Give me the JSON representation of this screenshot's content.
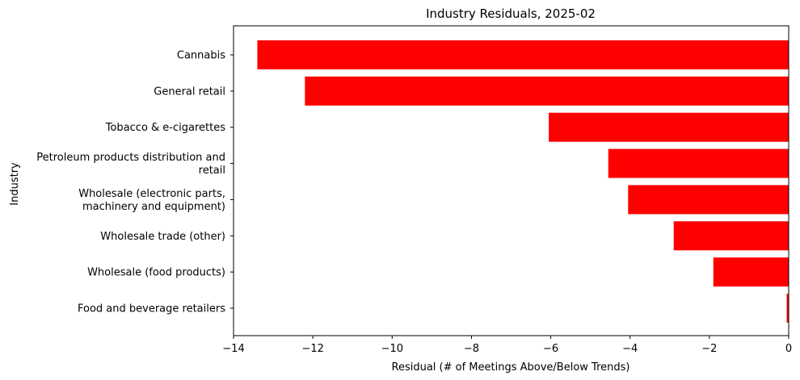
{
  "chart_data": {
    "type": "bar",
    "orientation": "horizontal",
    "title": "Industry Residuals, 2025-02",
    "xlabel": "Residual (# of Meetings Above/Below Trends)",
    "ylabel": "Industry",
    "xlim": [
      -14,
      0
    ],
    "xticks": [
      -14,
      -12,
      -10,
      -8,
      -6,
      -4,
      -2,
      0
    ],
    "xtick_labels": [
      "−14",
      "−12",
      "−10",
      "−8",
      "−6",
      "−4",
      "−2",
      "0"
    ],
    "grid": false,
    "legend": "none",
    "bar_color": "#ff0000",
    "categories": [
      [
        "Cannabis"
      ],
      [
        "General retail"
      ],
      [
        "Tobacco & e-cigarettes"
      ],
      [
        "Petroleum products distribution and",
        "retail"
      ],
      [
        "Wholesale (electronic parts,",
        "machinery and equipment)"
      ],
      [
        "Wholesale trade (other)"
      ],
      [
        "Wholesale (food products)"
      ],
      [
        "Food and beverage retailers"
      ]
    ],
    "values": [
      -13.4,
      -12.2,
      -6.05,
      -4.55,
      -4.05,
      -2.9,
      -1.9,
      -0.05
    ]
  }
}
